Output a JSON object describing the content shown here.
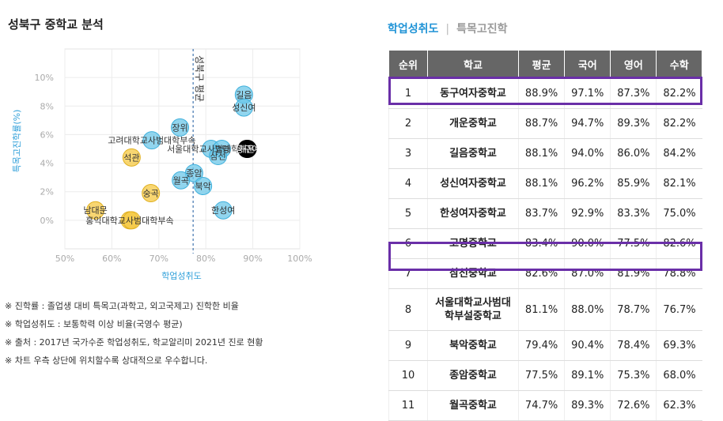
{
  "title": "성북구 중학교 분석",
  "tabs": [
    "학업성취도",
    "특목고진학"
  ],
  "table": {
    "headers": [
      "순위",
      "학교",
      "평균",
      "국어",
      "영어",
      "수학"
    ],
    "rows": [
      [
        "1",
        "동구여자중학교",
        "88.9%",
        "97.1%",
        "87.3%",
        "82.2%"
      ],
      [
        "2",
        "개운중학교",
        "88.7%",
        "94.7%",
        "89.3%",
        "82.2%"
      ],
      [
        "3",
        "길음중학교",
        "88.1%",
        "94.0%",
        "86.0%",
        "84.2%"
      ],
      [
        "4",
        "성신여자중학교",
        "88.1%",
        "96.2%",
        "85.9%",
        "82.1%"
      ],
      [
        "5",
        "한성여자중학교",
        "83.7%",
        "92.9%",
        "83.3%",
        "75.0%"
      ],
      [
        "6",
        "고명중학교",
        "83.4%",
        "90.0%",
        "77.5%",
        "82.6%"
      ],
      [
        "7",
        "삼선중학교",
        "82.6%",
        "87.0%",
        "81.9%",
        "78.8%"
      ],
      [
        "8",
        "서울대학교사범대\n학부설중학교",
        "81.1%",
        "88.0%",
        "78.7%",
        "76.7%"
      ],
      [
        "9",
        "북악중학교",
        "79.4%",
        "90.4%",
        "78.4%",
        "69.3%"
      ],
      [
        "10",
        "종암중학교",
        "77.5%",
        "89.1%",
        "75.3%",
        "68.0%"
      ],
      [
        "11",
        "월곡중학교",
        "74.7%",
        "89.3%",
        "72.6%",
        "62.3%"
      ]
    ],
    "highlighted_ranks": [
      "1",
      "7"
    ]
  },
  "notes": [
    "※ 진학률 : 졸업생 대비 특목고(과학고, 외고국제고) 진학한 비율",
    "※ 학업성취도 : 보통학력 이상 비율(국영수 평균)",
    "※ 출처 : 2017년 국가수준 학업성취도, 학교알리미 2021년 진로 현황",
    "※ 차트 우측 상단에 위치할수록 상대적으로 우수합니다."
  ],
  "chart_data": {
    "type": "scatter",
    "xlabel": "학업성취도",
    "ylabel": "특목고진학률(%)",
    "xlim": [
      50,
      100
    ],
    "ylim": [
      -2,
      12
    ],
    "xticks": [
      "50%",
      "60%",
      "70%",
      "80%",
      "90%",
      "100%"
    ],
    "yticks": [
      "0%",
      "2%",
      "4%",
      "6%",
      "8%",
      "10%"
    ],
    "reference_line": {
      "x": 77.3,
      "label": "성북구 평균"
    },
    "colors": {
      "high": "#6cc7e8",
      "low": "#f5c842",
      "selected": "#000000"
    },
    "points": [
      {
        "name": "길음",
        "x": 88.1,
        "y": 8.8,
        "group": "high"
      },
      {
        "name": "성신여",
        "x": 88.1,
        "y": 7.9,
        "group": "high"
      },
      {
        "name": "장위",
        "x": 74.5,
        "y": 6.5,
        "group": "high"
      },
      {
        "name": "고려대학교사범대학부속",
        "x": 68.5,
        "y": 5.6,
        "group": "high"
      },
      {
        "name": "서울대학교사범대학부속",
        "x": 81.1,
        "y": 5.0,
        "group": "high"
      },
      {
        "name": "개운",
        "x": 88.7,
        "y": 5.0,
        "group": "selected"
      },
      {
        "name": "동구여",
        "x": 88.9,
        "y": 5.0,
        "group": "selected"
      },
      {
        "name": "고명",
        "x": 83.4,
        "y": 5.0,
        "group": "high"
      },
      {
        "name": "삼선",
        "x": 82.6,
        "y": 4.5,
        "group": "high"
      },
      {
        "name": "석관",
        "x": 64.2,
        "y": 4.4,
        "group": "low"
      },
      {
        "name": "종암",
        "x": 77.5,
        "y": 3.3,
        "group": "high"
      },
      {
        "name": "월곡",
        "x": 74.7,
        "y": 2.8,
        "group": "high"
      },
      {
        "name": "북악",
        "x": 79.4,
        "y": 2.4,
        "group": "high"
      },
      {
        "name": "숭곡",
        "x": 68.3,
        "y": 1.9,
        "group": "low"
      },
      {
        "name": "한성여",
        "x": 83.7,
        "y": 0.7,
        "group": "high"
      },
      {
        "name": "남대문",
        "x": 56.5,
        "y": 0.7,
        "group": "low"
      },
      {
        "name": "홍익대학교사범대학부속",
        "x": 63.8,
        "y": 0.0,
        "group": "low"
      },
      {
        "name": "",
        "x": 64.2,
        "y": 0.0,
        "group": "low"
      }
    ]
  }
}
